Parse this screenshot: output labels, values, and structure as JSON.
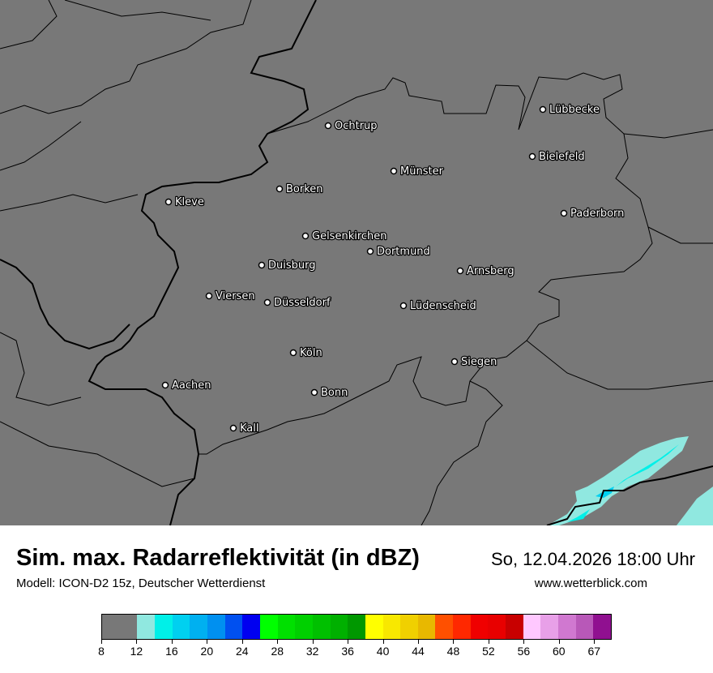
{
  "map": {
    "background_color": "#787878",
    "cities": [
      {
        "name": "Ochtrup"
      },
      {
        "name": "Lübbecke"
      },
      {
        "name": "Bielefeld"
      },
      {
        "name": "Münster"
      },
      {
        "name": "Borken"
      },
      {
        "name": "Kleve"
      },
      {
        "name": "Paderborn"
      },
      {
        "name": "Gelsenkirchen"
      },
      {
        "name": "Dortmund"
      },
      {
        "name": "Duisburg"
      },
      {
        "name": "Arnsberg"
      },
      {
        "name": "Viersen"
      },
      {
        "name": "Düsseldorf"
      },
      {
        "name": "Lüdenscheid"
      },
      {
        "name": "Köln"
      },
      {
        "name": "Siegen"
      },
      {
        "name": "Aachen"
      },
      {
        "name": "Bonn"
      },
      {
        "name": "Kall"
      }
    ]
  },
  "header": {
    "title": "Sim. max. Radarreflektivität (in dBZ)",
    "datetime": "So, 12.04.2026 18:00 Uhr",
    "model": "Modell: ICON-D2 15z, Deutscher Wetterdienst",
    "website": "www.wetterblick.com"
  },
  "legend": {
    "unit": "dBZ",
    "colors": [
      "#787878",
      "#90e8e0",
      "#00f0e8",
      "#00d0f0",
      "#00b0f0",
      "#0090f0",
      "#0050f0",
      "#0000f0",
      "#00ff00",
      "#00e000",
      "#00d000",
      "#00c000",
      "#00b000",
      "#009800",
      "#ffff00",
      "#f8e800",
      "#f0d000",
      "#e8b800",
      "#ff5000",
      "#ff2800",
      "#f00000",
      "#e80000",
      "#c80000",
      "#ffc8ff",
      "#e8a0e8",
      "#d078d0",
      "#b858b8",
      "#901090"
    ],
    "tick_labels": [
      "8",
      "12",
      "16",
      "20",
      "24",
      "28",
      "32",
      "36",
      "40",
      "44",
      "48",
      "52",
      "56",
      "60",
      "67"
    ]
  }
}
